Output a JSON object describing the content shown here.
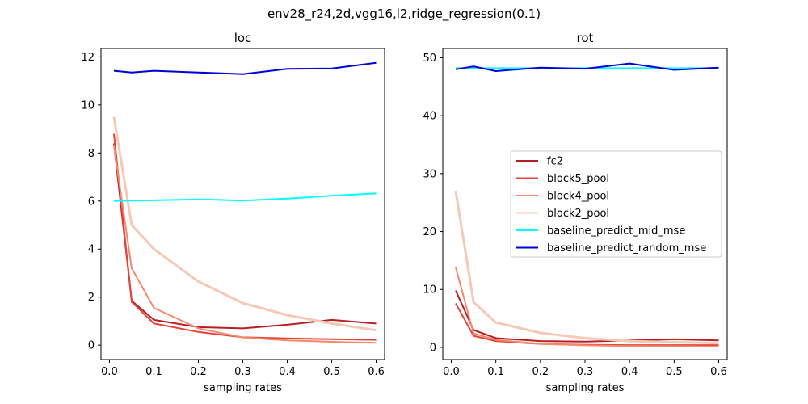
{
  "suptitle": "env28_r24,2d,vgg16,l2,ridge_regression(0.1)",
  "colors": {
    "fc2": "#b61f24",
    "block5_pool": "#e2453a",
    "block4_pool": "#f4896d",
    "block2_pool": "#f6c9b6",
    "baseline_predict_mid_mse": "#00ffff",
    "baseline_predict_random_mse": "#0000dd"
  },
  "chart_data": [
    {
      "type": "line",
      "title": "loc",
      "xlabel": "sampling rates",
      "ylabel": "",
      "xlim": [
        -0.019,
        0.619
      ],
      "ylim": [
        -0.6,
        12.35
      ],
      "xticks": [
        0.0,
        0.1,
        0.2,
        0.3,
        0.4,
        0.5,
        0.6
      ],
      "xtick_labels": [
        "0.0",
        "0.1",
        "0.2",
        "0.3",
        "0.4",
        "0.5",
        "0.6"
      ],
      "yticks": [
        0,
        2,
        4,
        6,
        8,
        10,
        12
      ],
      "ytick_labels": [
        "0",
        "2",
        "4",
        "6",
        "8",
        "10",
        "12"
      ],
      "x": [
        0.01,
        0.05,
        0.1,
        0.2,
        0.3,
        0.4,
        0.5,
        0.6
      ],
      "series": [
        {
          "name": "fc2",
          "values": [
            8.4,
            1.85,
            1.05,
            0.75,
            0.7,
            0.85,
            1.05,
            0.9
          ]
        },
        {
          "name": "block5_pool",
          "values": [
            8.8,
            1.8,
            0.9,
            0.55,
            0.33,
            0.28,
            0.25,
            0.22
          ]
        },
        {
          "name": "block4_pool",
          "values": [
            8.3,
            3.2,
            1.55,
            0.7,
            0.32,
            0.2,
            0.14,
            0.1
          ]
        },
        {
          "name": "block2_pool",
          "values": [
            9.5,
            5.0,
            4.0,
            2.65,
            1.75,
            1.25,
            0.9,
            0.62
          ]
        },
        {
          "name": "baseline_predict_mid_mse",
          "values": [
            6.0,
            6.02,
            6.03,
            6.07,
            6.02,
            6.1,
            6.22,
            6.32
          ]
        },
        {
          "name": "baseline_predict_random_mse",
          "values": [
            11.42,
            11.35,
            11.42,
            11.35,
            11.28,
            11.5,
            11.52,
            11.75
          ]
        }
      ]
    },
    {
      "type": "line",
      "title": "rot",
      "xlabel": "sampling rates",
      "ylabel": "",
      "xlim": [
        -0.019,
        0.619
      ],
      "ylim": [
        -2.1,
        51.6
      ],
      "xticks": [
        0.0,
        0.1,
        0.2,
        0.3,
        0.4,
        0.5,
        0.6
      ],
      "xtick_labels": [
        "0.0",
        "0.1",
        "0.2",
        "0.3",
        "0.4",
        "0.5",
        "0.6"
      ],
      "yticks": [
        0,
        10,
        20,
        30,
        40,
        50
      ],
      "ytick_labels": [
        "0",
        "10",
        "20",
        "30",
        "40",
        "50"
      ],
      "x": [
        0.01,
        0.05,
        0.1,
        0.2,
        0.3,
        0.4,
        0.5,
        0.6
      ],
      "legend_position": "center-right",
      "series": [
        {
          "name": "fc2",
          "values": [
            9.8,
            3.0,
            1.6,
            1.1,
            1.0,
            1.2,
            1.4,
            1.2
          ]
        },
        {
          "name": "block5_pool",
          "values": [
            7.6,
            2.0,
            1.1,
            0.6,
            0.45,
            0.4,
            0.4,
            0.4
          ]
        },
        {
          "name": "block4_pool",
          "values": [
            13.8,
            2.4,
            1.3,
            0.6,
            0.35,
            0.25,
            0.2,
            0.15
          ]
        },
        {
          "name": "block2_pool",
          "values": [
            27.0,
            7.8,
            4.3,
            2.5,
            1.6,
            1.1,
            0.9,
            0.75
          ]
        },
        {
          "name": "baseline_predict_mid_mse",
          "values": [
            48.2,
            48.2,
            48.2,
            48.2,
            48.2,
            48.2,
            48.2,
            48.2
          ]
        },
        {
          "name": "baseline_predict_random_mse",
          "values": [
            48.0,
            48.5,
            47.7,
            48.3,
            48.1,
            49.0,
            47.9,
            48.3
          ]
        }
      ]
    }
  ]
}
